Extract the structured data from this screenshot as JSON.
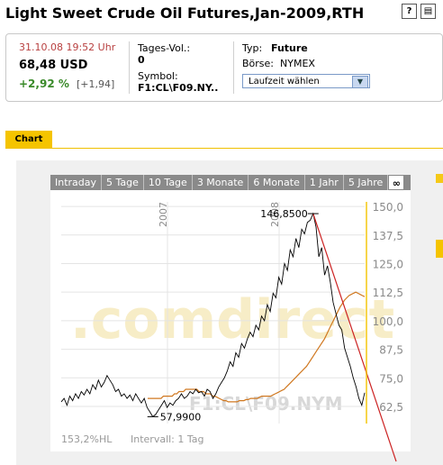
{
  "header": {
    "title": "Light Sweet Crude Oil Futures,Jan-2009,RTH",
    "help_icon": "question-icon",
    "print_icon": "print-icon"
  },
  "quote": {
    "datetime": "31.10.08 19:52 Uhr",
    "price": "68,48 USD",
    "change_pct": "+2,92 %",
    "change_abs": "[+1,94]",
    "volume_label": "Tages-Vol.:",
    "volume_value": "0",
    "symbol_label": "Symbol:",
    "symbol_value": "F1:CL\\F09.NY..",
    "type_label": "Typ:",
    "type_value": "Future",
    "exchange_label": "Börse:",
    "exchange_value": "NYMEX",
    "runtime_select": "Laufzeit wählen"
  },
  "tabs": {
    "chart": "Chart"
  },
  "ranges": [
    "Intraday",
    "5 Tage",
    "10 Tage",
    "3 Monate",
    "6 Monate",
    "1 Jahr",
    "5 Jahre"
  ],
  "range_active_icon": "chart-type-icon",
  "colors": {
    "price_line": "#000000",
    "moving_average": "#d07820",
    "trend_line": "#cc2222",
    "accent_yellow": "#f5c400",
    "quote_change": "#3a8a2a"
  },
  "chart_data": {
    "type": "line",
    "title": "",
    "watermark": "F1:CL\\F09.NYM",
    "brand_watermark": ".comdirect",
    "x_labels": [
      "2007",
      "2008"
    ],
    "y_ticks": [
      "150,0",
      "137,5",
      "125,0",
      "112,5",
      "100,0",
      "87,5",
      "75,0",
      "62,5"
    ],
    "ylim": [
      55,
      152
    ],
    "max_annotation": "146,8500",
    "min_annotation": "57,9900",
    "footer_left": "153,2%HL",
    "footer_interval": "Intervall: 1 Tag",
    "series": [
      {
        "values": [
          64.5,
          66,
          63,
          67,
          65,
          68,
          66,
          69,
          67.5,
          70,
          68,
          72,
          70,
          74,
          71,
          73,
          76,
          74,
          72,
          69,
          70,
          67,
          68,
          66,
          67.5,
          65,
          68,
          66,
          64,
          66,
          62,
          60,
          58,
          59,
          61,
          63,
          65,
          62,
          64,
          63,
          65,
          66,
          68,
          66,
          67,
          69,
          68,
          70,
          68.5,
          69,
          67,
          70,
          69,
          66,
          68,
          71,
          73,
          75,
          78,
          82,
          80,
          86,
          84,
          90,
          88,
          92,
          95,
          93,
          98,
          96,
          102,
          100,
          107,
          104,
          112,
          110,
          119,
          116,
          125,
          122,
          131,
          128,
          136,
          132,
          140,
          138,
          143,
          144,
          146.85,
          141,
          128,
          132,
          120,
          124,
          117,
          108,
          103,
          98,
          96,
          88,
          84,
          80,
          75,
          71,
          66,
          63,
          68.5
        ]
      },
      {
        "values": [
          66,
          66,
          66,
          66,
          66,
          66,
          66,
          67,
          67,
          67,
          67,
          67,
          68,
          68,
          69,
          69,
          69,
          70,
          70,
          70,
          70,
          70,
          70,
          69,
          69,
          69,
          68,
          68,
          68,
          67,
          67,
          66.5,
          66,
          65.5,
          65,
          65,
          64.5,
          64.5,
          64.5,
          64.5,
          64.5,
          65,
          65,
          65,
          65.5,
          65.5,
          66,
          66,
          66,
          66,
          66.5,
          67,
          67,
          67,
          67,
          67,
          67.5,
          68,
          68.5,
          69,
          69.5,
          70,
          71,
          72,
          73,
          74,
          75,
          76,
          77,
          78,
          79,
          80,
          81.5,
          83,
          84.5,
          86,
          87.5,
          89,
          90.5,
          92,
          94,
          96,
          98,
          100,
          102,
          104,
          106,
          107.5,
          109,
          110,
          111,
          111.5,
          112,
          112.5,
          112,
          111.5,
          111,
          110.5
        ]
      }
    ]
  }
}
